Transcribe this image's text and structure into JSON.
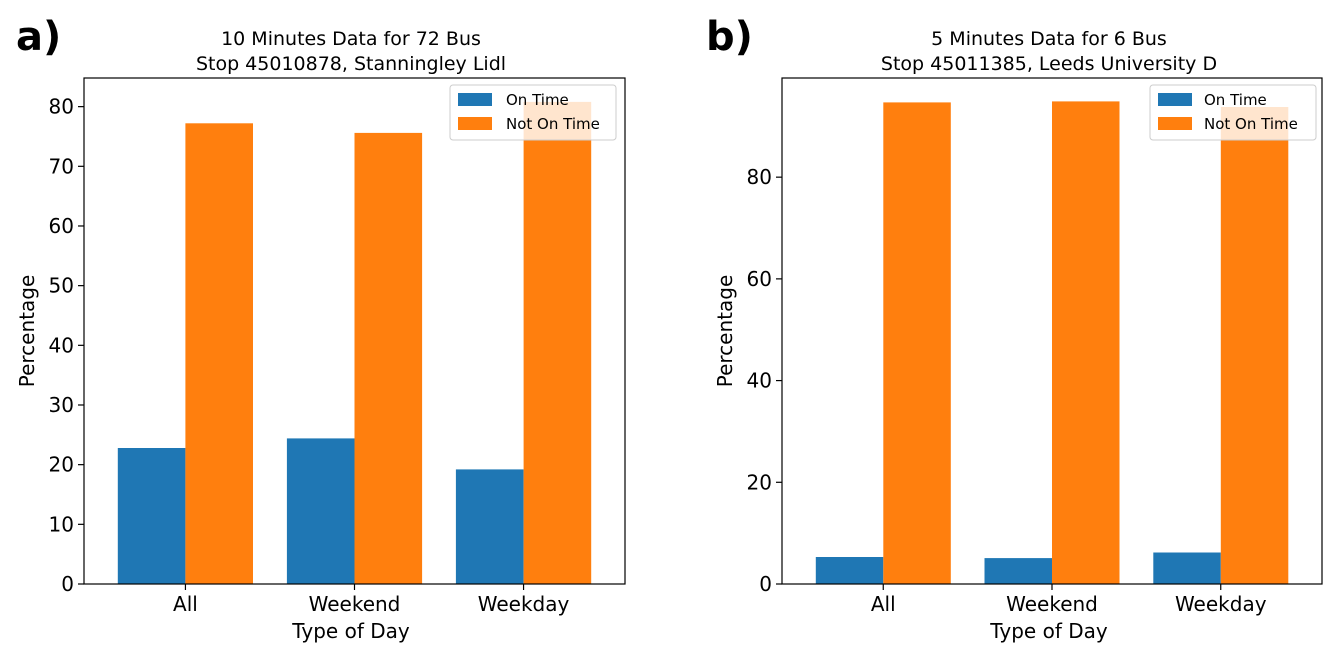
{
  "chart_data": [
    {
      "panel_label": "a)",
      "type": "bar",
      "title_lines": [
        "10 Minutes Data for 72 Bus",
        "Stop 45010878, Stanningley Lidl"
      ],
      "xlabel": "Type of Day",
      "ylabel": "Percentage",
      "categories": [
        "All",
        "Weekend",
        "Weekday"
      ],
      "series": [
        {
          "name": "On Time",
          "color": "#1f77b4",
          "values": [
            22.8,
            24.4,
            19.2
          ]
        },
        {
          "name": "Not On Time",
          "color": "#ff7f0e",
          "values": [
            77.2,
            75.6,
            80.8
          ]
        }
      ],
      "ylim": [
        0,
        84.8
      ],
      "yticks": [
        0,
        10,
        20,
        30,
        40,
        50,
        60,
        70,
        80
      ],
      "legend_position": "top-right",
      "grid": false
    },
    {
      "panel_label": "b)",
      "type": "bar",
      "title_lines": [
        "5 Minutes Data for 6 Bus",
        "Stop 45011385, Leeds University D"
      ],
      "xlabel": "Type of Day",
      "ylabel": "Percentage",
      "categories": [
        "All",
        "Weekend",
        "Weekday"
      ],
      "series": [
        {
          "name": "On Time",
          "color": "#1f77b4",
          "values": [
            5.3,
            5.1,
            6.2
          ]
        },
        {
          "name": "Not On Time",
          "color": "#ff7f0e",
          "values": [
            94.7,
            94.9,
            93.8
          ]
        }
      ],
      "ylim": [
        0,
        99.5
      ],
      "yticks": [
        0,
        20,
        40,
        60,
        80
      ],
      "legend_position": "top-right",
      "grid": false
    }
  ]
}
